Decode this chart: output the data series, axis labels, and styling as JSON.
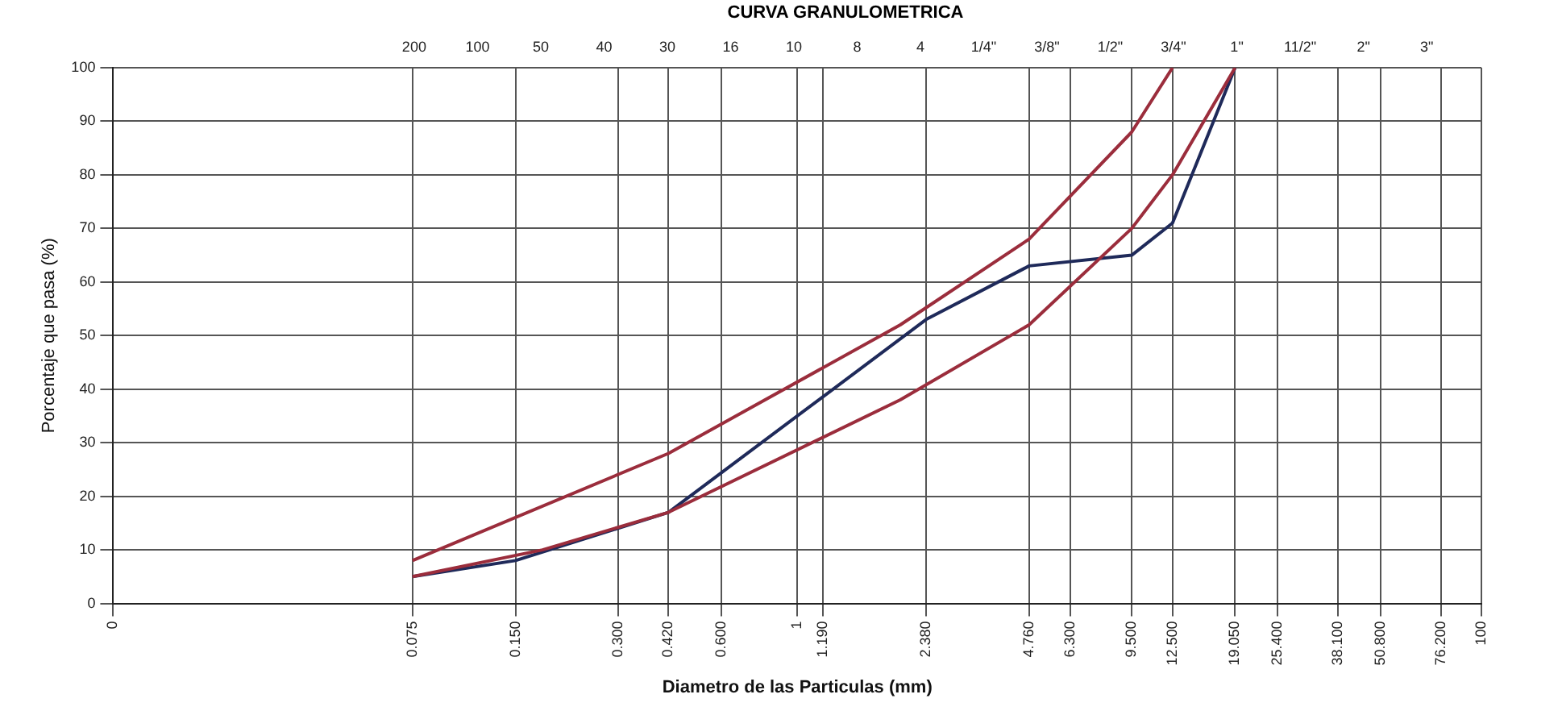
{
  "chart_data": {
    "type": "line",
    "title": "CURVA GRANULOMETRICA",
    "xlabel": "Diametro de las Particulas (mm)",
    "ylabel": "Porcentaje que pasa (%)",
    "log": "x",
    "grid": true,
    "legend": false,
    "marker": "none",
    "line_style": "solid",
    "xlim": [
      0.01,
      100
    ],
    "ylim": [
      0,
      100
    ],
    "xticks": [
      {
        "value": 0.01,
        "label": "0"
      },
      {
        "value": 0.075,
        "label": "0.075"
      },
      {
        "value": 0.15,
        "label": "0.150"
      },
      {
        "value": 0.3,
        "label": "0.300"
      },
      {
        "value": 0.42,
        "label": "0.420"
      },
      {
        "value": 0.6,
        "label": "0.600"
      },
      1,
      {
        "value": 1.19,
        "label": "1.190"
      },
      {
        "value": 2.38,
        "label": "2.380"
      },
      {
        "value": 4.76,
        "label": "4.760"
      },
      {
        "value": 6.3,
        "label": "6.300"
      },
      {
        "value": 9.5,
        "label": "9.500"
      },
      {
        "value": 12.5,
        "label": "12.500"
      },
      {
        "value": 19.05,
        "label": "19.050"
      },
      {
        "value": 25.4,
        "label": "25.400"
      },
      {
        "value": 38.1,
        "label": "38.100"
      },
      {
        "value": 50.8,
        "label": "50.800"
      },
      {
        "value": 76.2,
        "label": "76.200"
      },
      100
    ],
    "annotations": [
      "200",
      "100",
      "50",
      "40",
      "30",
      "16",
      "10",
      "8",
      "4",
      "1/4\"",
      "3/8\"",
      "1/2\"",
      "3/4\"",
      "1\"",
      "11/2\"",
      "2\"",
      "3\""
    ],
    "yticks": [
      0,
      10,
      20,
      30,
      40,
      50,
      60,
      70,
      80,
      90,
      100
    ],
    "series": [
      {
        "color": "#9b2d3c",
        "x": [
          0.075,
          0.42,
          2,
          4.76,
          9.5,
          12.5
        ],
        "values": [
          8,
          28,
          52,
          68,
          88,
          100
        ]
      },
      {
        "color": "#9b2d3c",
        "x": [
          0.075,
          0.18,
          0.42,
          2,
          4.76,
          9.5,
          12.5,
          19.05
        ],
        "values": [
          5,
          10,
          17,
          38,
          52,
          70,
          80,
          100
        ]
      },
      {
        "color": "#1f2a5a",
        "x": [
          0.075,
          0.15,
          0.42,
          2.38,
          4.76,
          9.5,
          12.5,
          19.05
        ],
        "values": [
          5,
          8,
          17,
          53,
          63,
          65,
          71,
          100
        ]
      }
    ]
  }
}
